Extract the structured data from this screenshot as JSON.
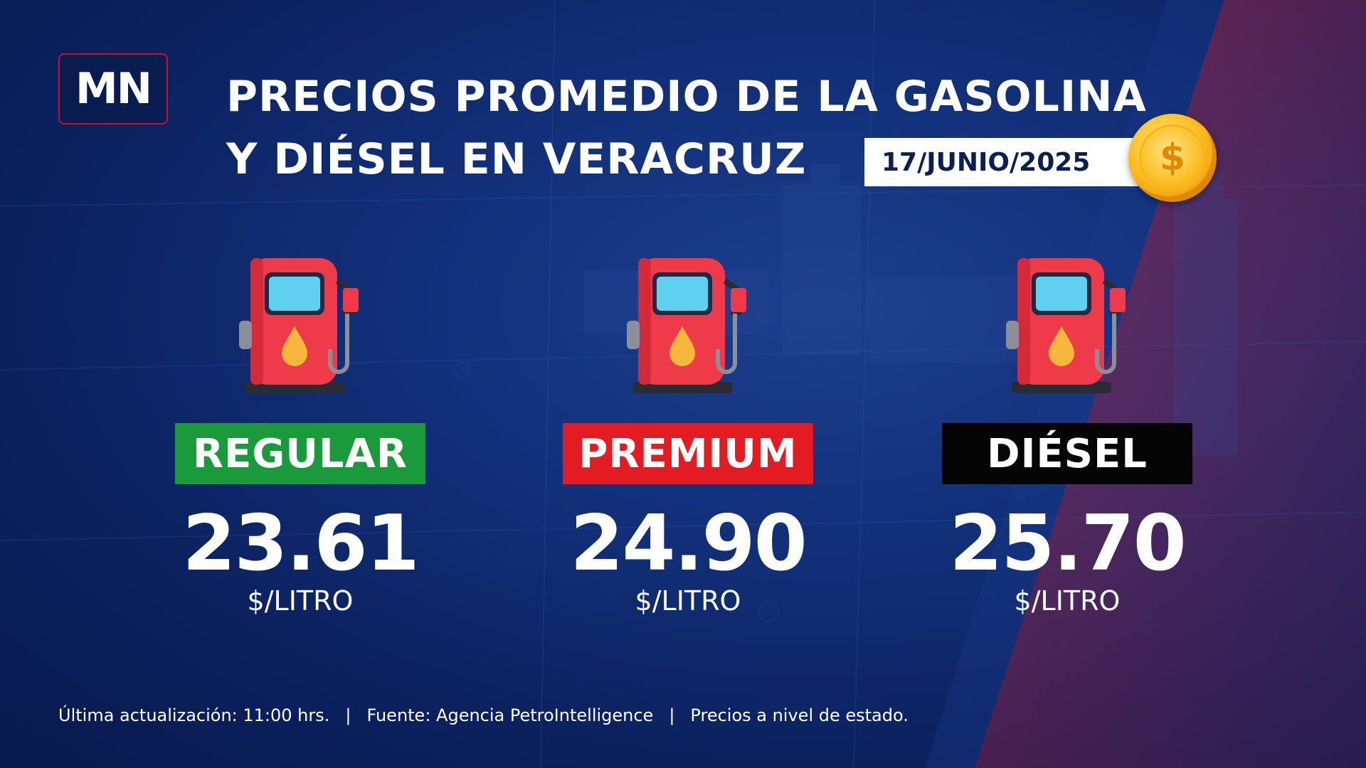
{
  "logo": {
    "text": "MN"
  },
  "title": {
    "line1": "PRECIOS PROMEDIO DE LA GASOLINA",
    "line2": "Y DIÉSEL EN VERACRUZ"
  },
  "date": "17/JUNIO/2025",
  "coin_symbol": "$",
  "fuels": [
    {
      "label": "REGULAR",
      "price": "23.61",
      "unit": "$/LITRO",
      "color": "#1a9a3b"
    },
    {
      "label": "PREMIUM",
      "price": "24.90",
      "unit": "$/LITRO",
      "color": "#e31b23"
    },
    {
      "label": "DIÉSEL",
      "price": "25.70",
      "unit": "$/LITRO",
      "color": "#050505"
    }
  ],
  "footer": {
    "updated": "Última actualización: 11:00 hrs.",
    "source": "Fuente: Agencia PetroIntelligence",
    "note": "Precios a nivel de estado.",
    "separator": "|"
  },
  "colors": {
    "background": "#0b215e",
    "accent_red": "#c8102e",
    "pump_red": "#ef3a4a",
    "pump_screen": "#5fd0f0",
    "drop": "#f6b73c"
  }
}
